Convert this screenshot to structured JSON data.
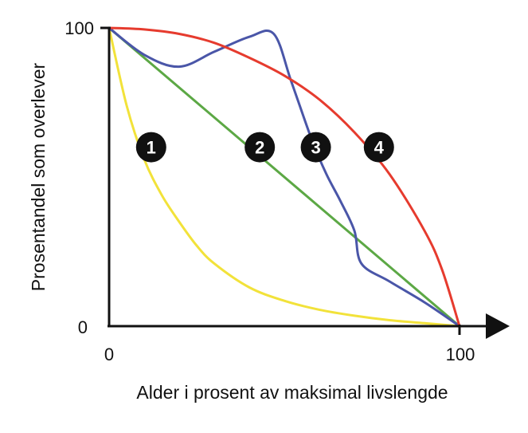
{
  "chart_data": {
    "type": "line",
    "xlabel": "Alder i prosent av maksimal livslengde",
    "ylabel": "Prosentandel som overlever",
    "xlim": [
      0,
      100
    ],
    "ylim": [
      0,
      100
    ],
    "x_ticks": [
      "0",
      "100"
    ],
    "y_ticks": [
      "0",
      "100"
    ],
    "grid": false,
    "series": [
      {
        "name": "1",
        "color": "#f2e23a",
        "x": [
          0,
          5,
          10,
          15,
          20,
          25,
          30,
          40,
          50,
          60,
          70,
          80,
          90,
          100
        ],
        "y": [
          100,
          74,
          56,
          44,
          35,
          27,
          21,
          13,
          8.5,
          5.5,
          3.5,
          2,
          1,
          0
        ]
      },
      {
        "name": "2",
        "color": "#5ca845",
        "x": [
          0,
          100
        ],
        "y": [
          100,
          0
        ]
      },
      {
        "name": "3",
        "color": "#4a56a8",
        "x": [
          0,
          10,
          20,
          30,
          40,
          47,
          52,
          58,
          62,
          66,
          70,
          72,
          80,
          90,
          100
        ],
        "y": [
          100,
          91,
          87,
          92,
          97,
          98,
          82,
          62,
          51,
          42,
          32,
          21,
          15,
          8,
          0
        ]
      },
      {
        "name": "4",
        "color": "#e63b2e",
        "x": [
          0,
          10,
          20,
          30,
          40,
          50,
          60,
          70,
          80,
          90,
          95,
          100
        ],
        "y": [
          100,
          99.5,
          98,
          95,
          90,
          84,
          76,
          65,
          51,
          32,
          19,
          0
        ]
      }
    ],
    "labels": [
      {
        "text": "1",
        "x": 12,
        "y": 60
      },
      {
        "text": "2",
        "x": 43,
        "y": 60
      },
      {
        "text": "3",
        "x": 59,
        "y": 60
      },
      {
        "text": "4",
        "x": 77,
        "y": 60
      }
    ]
  }
}
